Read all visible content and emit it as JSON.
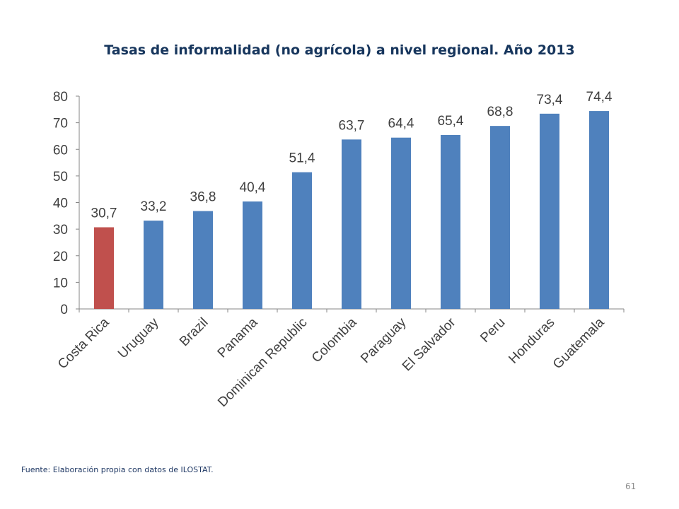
{
  "slide": {
    "title": "Tasas de informalidad (no agrícola) a nivel regional. Año 2013",
    "source": "Fuente: Elaboración propia con datos de ILOSTAT.",
    "page_number": "61"
  },
  "chart_data": {
    "type": "bar",
    "title": "Tasas de informalidad (no agrícola) a nivel regional. Año 2013",
    "xlabel": "",
    "ylabel": "",
    "categories": [
      "Costa Rica",
      "Uruguay",
      "Brazil",
      "Panama",
      "Dominican Republic",
      "Colombia",
      "Paraguay",
      "El Salvador",
      "Peru",
      "Honduras",
      "Guatemala"
    ],
    "values": [
      30.7,
      33.2,
      36.8,
      40.4,
      51.4,
      63.7,
      64.4,
      65.4,
      68.8,
      73.4,
      74.4
    ],
    "value_labels": [
      "30,7",
      "33,2",
      "36,8",
      "40,4",
      "51,4",
      "63,7",
      "64,4",
      "65,4",
      "68,8",
      "73,4",
      "74,4"
    ],
    "ylim": [
      0,
      80
    ],
    "yticks": [
      0,
      10,
      20,
      30,
      40,
      50,
      60,
      70,
      80
    ],
    "grid": false,
    "legend": "none",
    "colors": {
      "default": "#4f81bd",
      "highlight": "#c0504d",
      "axis": "#868686",
      "text": "#404040"
    },
    "highlight_category": "Costa Rica"
  }
}
